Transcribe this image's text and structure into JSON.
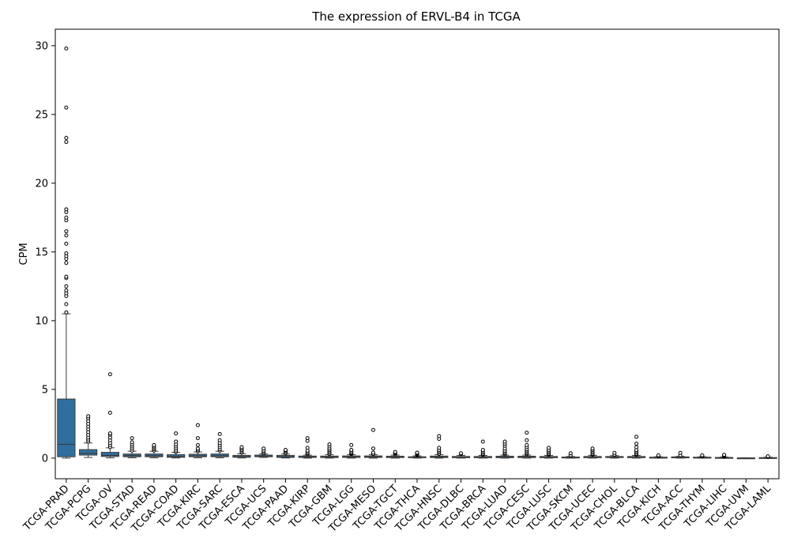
{
  "chart_data": {
    "type": "box",
    "title": "The expression of ERVL-B4 in TCGA",
    "xlabel": "",
    "ylabel": "CPM",
    "ylim": [
      -1.5,
      31.2
    ],
    "yticks": [
      0,
      5,
      10,
      15,
      20,
      25,
      30
    ],
    "grid": false,
    "box_color": "#2e6f9e",
    "categories": [
      "TCGA-PRAD",
      "TCGA-PCPG",
      "TCGA-OV",
      "TCGA-STAD",
      "TCGA-READ",
      "TCGA-COAD",
      "TCGA-KIRC",
      "TCGA-SARC",
      "TCGA-ESCA",
      "TCGA-UCS",
      "TCGA-PAAD",
      "TCGA-KIRP",
      "TCGA-GBM",
      "TCGA-LGG",
      "TCGA-MESO",
      "TCGA-TGCT",
      "TCGA-THCA",
      "TCGA-HNSC",
      "TCGA-DLBC",
      "TCGA-BRCA",
      "TCGA-LUAD",
      "TCGA-CESC",
      "TCGA-LUSC",
      "TCGA-SKCM",
      "TCGA-UCEC",
      "TCGA-CHOL",
      "TCGA-BLCA",
      "TCGA-KICH",
      "TCGA-ACC",
      "TCGA-THYM",
      "TCGA-LIHC",
      "TCGA-UVM",
      "TCGA-LAML"
    ],
    "boxes": [
      {
        "min": 0.0,
        "q1": 0.1,
        "median": 1.0,
        "q3": 4.3,
        "max": 10.5,
        "outliers": [
          10.6,
          11.2,
          11.8,
          12.0,
          12.2,
          12.5,
          13.1,
          13.2,
          14.2,
          14.5,
          14.7,
          14.9,
          15.6,
          16.2,
          16.5,
          17.3,
          17.5,
          17.9,
          18.1,
          23.0,
          23.3,
          25.5,
          29.8
        ]
      },
      {
        "min": 0.05,
        "q1": 0.22,
        "median": 0.35,
        "q3": 0.62,
        "max": 1.1,
        "outliers": [
          1.2,
          1.35,
          1.5,
          1.7,
          1.9,
          2.1,
          2.3,
          2.5,
          2.7,
          2.9,
          3.05
        ]
      },
      {
        "min": 0.02,
        "q1": 0.12,
        "median": 0.2,
        "q3": 0.42,
        "max": 0.75,
        "outliers": [
          0.8,
          0.95,
          1.1,
          1.3,
          1.5,
          1.7,
          1.8,
          3.3,
          6.1
        ]
      },
      {
        "min": 0.02,
        "q1": 0.1,
        "median": 0.18,
        "q3": 0.3,
        "max": 0.5,
        "outliers": [
          0.55,
          0.7,
          0.85,
          1.0,
          1.15,
          1.45
        ]
      },
      {
        "min": 0.02,
        "q1": 0.1,
        "median": 0.17,
        "q3": 0.3,
        "max": 0.5,
        "outliers": [
          0.55,
          0.65,
          0.75,
          0.85,
          0.95
        ]
      },
      {
        "min": 0.01,
        "q1": 0.06,
        "median": 0.12,
        "q3": 0.25,
        "max": 0.42,
        "outliers": [
          0.45,
          0.55,
          0.7,
          0.85,
          1.0,
          1.2,
          1.8
        ]
      },
      {
        "min": 0.02,
        "q1": 0.1,
        "median": 0.16,
        "q3": 0.28,
        "max": 0.45,
        "outliers": [
          0.5,
          0.6,
          0.7,
          0.95,
          1.45,
          2.4
        ]
      },
      {
        "min": 0.02,
        "q1": 0.1,
        "median": 0.17,
        "q3": 0.3,
        "max": 0.5,
        "outliers": [
          0.55,
          0.65,
          0.8,
          0.95,
          1.1,
          1.3,
          1.75
        ]
      },
      {
        "min": 0.01,
        "q1": 0.06,
        "median": 0.12,
        "q3": 0.2,
        "max": 0.32,
        "outliers": [
          0.4,
          0.5,
          0.6,
          0.7,
          0.8
        ]
      },
      {
        "min": 0.05,
        "q1": 0.1,
        "median": 0.15,
        "q3": 0.22,
        "max": 0.3,
        "outliers": [
          0.35,
          0.45,
          0.55,
          0.7
        ]
      },
      {
        "min": 0.01,
        "q1": 0.05,
        "median": 0.1,
        "q3": 0.2,
        "max": 0.3,
        "outliers": [
          0.35,
          0.45,
          0.55,
          0.6
        ]
      },
      {
        "min": 0.0,
        "q1": 0.05,
        "median": 0.09,
        "q3": 0.15,
        "max": 0.22,
        "outliers": [
          0.28,
          0.35,
          0.45,
          0.55,
          0.75,
          1.25,
          1.45
        ]
      },
      {
        "min": 0.0,
        "q1": 0.04,
        "median": 0.08,
        "q3": 0.15,
        "max": 0.25,
        "outliers": [
          0.3,
          0.4,
          0.5,
          0.6,
          0.7,
          0.85,
          1.0
        ]
      },
      {
        "min": 0.0,
        "q1": 0.05,
        "median": 0.09,
        "q3": 0.16,
        "max": 0.25,
        "outliers": [
          0.3,
          0.35,
          0.4,
          0.5,
          0.6,
          0.95
        ]
      },
      {
        "min": 0.0,
        "q1": 0.05,
        "median": 0.1,
        "q3": 0.16,
        "max": 0.25,
        "outliers": [
          0.3,
          0.4,
          0.7,
          2.05
        ]
      },
      {
        "min": 0.0,
        "q1": 0.04,
        "median": 0.08,
        "q3": 0.14,
        "max": 0.22,
        "outliers": [
          0.28,
          0.35,
          0.4,
          0.45
        ]
      },
      {
        "min": 0.0,
        "q1": 0.03,
        "median": 0.06,
        "q3": 0.1,
        "max": 0.16,
        "outliers": [
          0.2,
          0.25,
          0.3,
          0.35,
          0.4
        ]
      },
      {
        "min": 0.0,
        "q1": 0.04,
        "median": 0.08,
        "q3": 0.15,
        "max": 0.25,
        "outliers": [
          0.3,
          0.4,
          0.5,
          0.6,
          0.75,
          1.4,
          1.6
        ]
      },
      {
        "min": 0.0,
        "q1": 0.03,
        "median": 0.06,
        "q3": 0.12,
        "max": 0.2,
        "outliers": [
          0.3,
          0.35
        ]
      },
      {
        "min": 0.0,
        "q1": 0.03,
        "median": 0.06,
        "q3": 0.12,
        "max": 0.2,
        "outliers": [
          0.25,
          0.3,
          0.4,
          0.5,
          0.6,
          1.2
        ]
      },
      {
        "min": 0.0,
        "q1": 0.03,
        "median": 0.07,
        "q3": 0.14,
        "max": 0.22,
        "outliers": [
          0.28,
          0.35,
          0.45,
          0.55,
          0.7,
          0.9,
          1.05,
          1.2
        ]
      },
      {
        "min": 0.0,
        "q1": 0.04,
        "median": 0.07,
        "q3": 0.14,
        "max": 0.22,
        "outliers": [
          0.28,
          0.35,
          0.45,
          0.55,
          0.65,
          0.8,
          0.95,
          1.3,
          1.85
        ]
      },
      {
        "min": 0.0,
        "q1": 0.03,
        "median": 0.06,
        "q3": 0.12,
        "max": 0.2,
        "outliers": [
          0.25,
          0.3,
          0.4,
          0.5,
          0.6,
          0.75
        ]
      },
      {
        "min": 0.0,
        "q1": 0.02,
        "median": 0.04,
        "q3": 0.08,
        "max": 0.12,
        "outliers": [
          0.2,
          0.35
        ]
      },
      {
        "min": 0.0,
        "q1": 0.03,
        "median": 0.06,
        "q3": 0.12,
        "max": 0.2,
        "outliers": [
          0.25,
          0.3,
          0.4,
          0.5,
          0.6,
          0.7
        ]
      },
      {
        "min": 0.0,
        "q1": 0.04,
        "median": 0.07,
        "q3": 0.12,
        "max": 0.18,
        "outliers": [
          0.25,
          0.38
        ]
      },
      {
        "min": 0.0,
        "q1": 0.03,
        "median": 0.06,
        "q3": 0.12,
        "max": 0.2,
        "outliers": [
          0.25,
          0.3,
          0.4,
          0.5,
          0.6,
          0.8,
          1.05,
          1.55
        ]
      },
      {
        "min": 0.0,
        "q1": 0.02,
        "median": 0.04,
        "q3": 0.07,
        "max": 0.1,
        "outliers": [
          0.15,
          0.2
        ]
      },
      {
        "min": 0.0,
        "q1": 0.03,
        "median": 0.05,
        "q3": 0.09,
        "max": 0.13,
        "outliers": [
          0.2,
          0.38
        ]
      },
      {
        "min": 0.0,
        "q1": 0.02,
        "median": 0.04,
        "q3": 0.07,
        "max": 0.1,
        "outliers": [
          0.13,
          0.17,
          0.2
        ]
      },
      {
        "min": 0.0,
        "q1": 0.01,
        "median": 0.03,
        "q3": 0.05,
        "max": 0.08,
        "outliers": [
          0.1,
          0.13,
          0.17,
          0.2,
          0.24
        ]
      },
      {
        "min": 0.0,
        "q1": 0.005,
        "median": 0.01,
        "q3": 0.02,
        "max": 0.03,
        "outliers": []
      },
      {
        "min": 0.0,
        "q1": 0.01,
        "median": 0.02,
        "q3": 0.04,
        "max": 0.07,
        "outliers": [
          0.09,
          0.11,
          0.13
        ]
      }
    ]
  }
}
